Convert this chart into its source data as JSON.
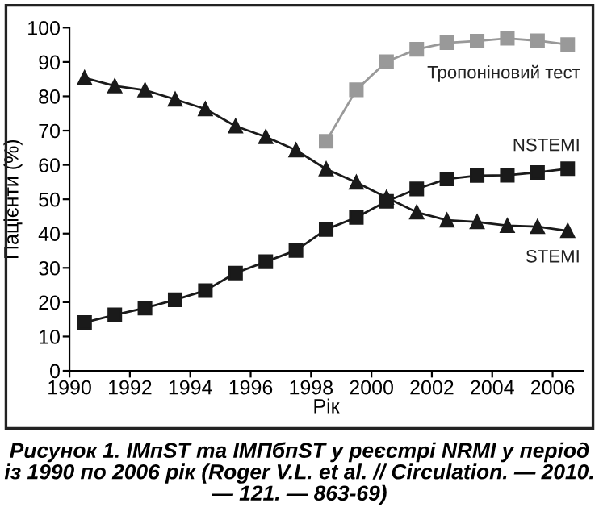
{
  "chart_data": {
    "type": "line",
    "title": "Рисунок 1. IMпST та IMПбпST у реєстрі NRMI у період із 1990 по 2006 рік (Roger V.L. et al. // Circulation. — 2010. — 121. — 863-69)",
    "xlabel": "Рік",
    "ylabel": "Пацієнти (%)",
    "xlim": [
      1990,
      2007
    ],
    "xticks": [
      1990,
      1992,
      1994,
      1996,
      1998,
      2000,
      2002,
      2004,
      2006
    ],
    "ylim": [
      0,
      100
    ],
    "yticks": [
      0,
      10,
      20,
      30,
      40,
      50,
      60,
      70,
      80,
      90,
      100
    ],
    "grid": false,
    "legend": false,
    "line_style": "solid",
    "series": [
      {
        "name": "Тропоніновий тест",
        "color": "#999999",
        "marker": "square",
        "x": [
          1998.5,
          1999.5,
          2000.5,
          2001.5,
          2002.5,
          2003.5,
          2004.5,
          2005.5,
          2006.5
        ],
        "values": [
          66.9,
          81.9,
          90.1,
          93.7,
          95.6,
          96.1,
          96.9,
          96.2,
          95.1
        ]
      },
      {
        "name": "NSTEMI",
        "color": "#1a1a1a",
        "marker": "square",
        "x": [
          1990.5,
          1991.5,
          1992.5,
          1993.5,
          1994.5,
          1995.5,
          1996.5,
          1997.5,
          1998.5,
          1999.5,
          2000.5,
          2001.5,
          2002.5,
          2003.5,
          2004.5,
          2005.5,
          2006.5
        ],
        "values": [
          14.1,
          16.3,
          18.3,
          20.7,
          23.4,
          28.5,
          31.8,
          35.1,
          41.2,
          44.7,
          49.4,
          53.0,
          55.9,
          56.9,
          57.0,
          57.8,
          58.9
        ]
      },
      {
        "name": "STEMI",
        "color": "#1a1a1a",
        "marker": "triangle",
        "x": [
          1990.5,
          1991.5,
          1992.5,
          1993.5,
          1994.5,
          1995.5,
          1996.5,
          1997.5,
          1998.5,
          1999.5,
          2000.5,
          2001.5,
          2002.5,
          2003.5,
          2004.5,
          2005.5,
          2006.5
        ],
        "values": [
          85.4,
          83.0,
          81.8,
          79.1,
          76.3,
          71.3,
          68.2,
          64.3,
          58.8,
          54.9,
          50.5,
          46.2,
          43.9,
          43.4,
          42.3,
          42.0,
          40.8
        ]
      }
    ]
  }
}
